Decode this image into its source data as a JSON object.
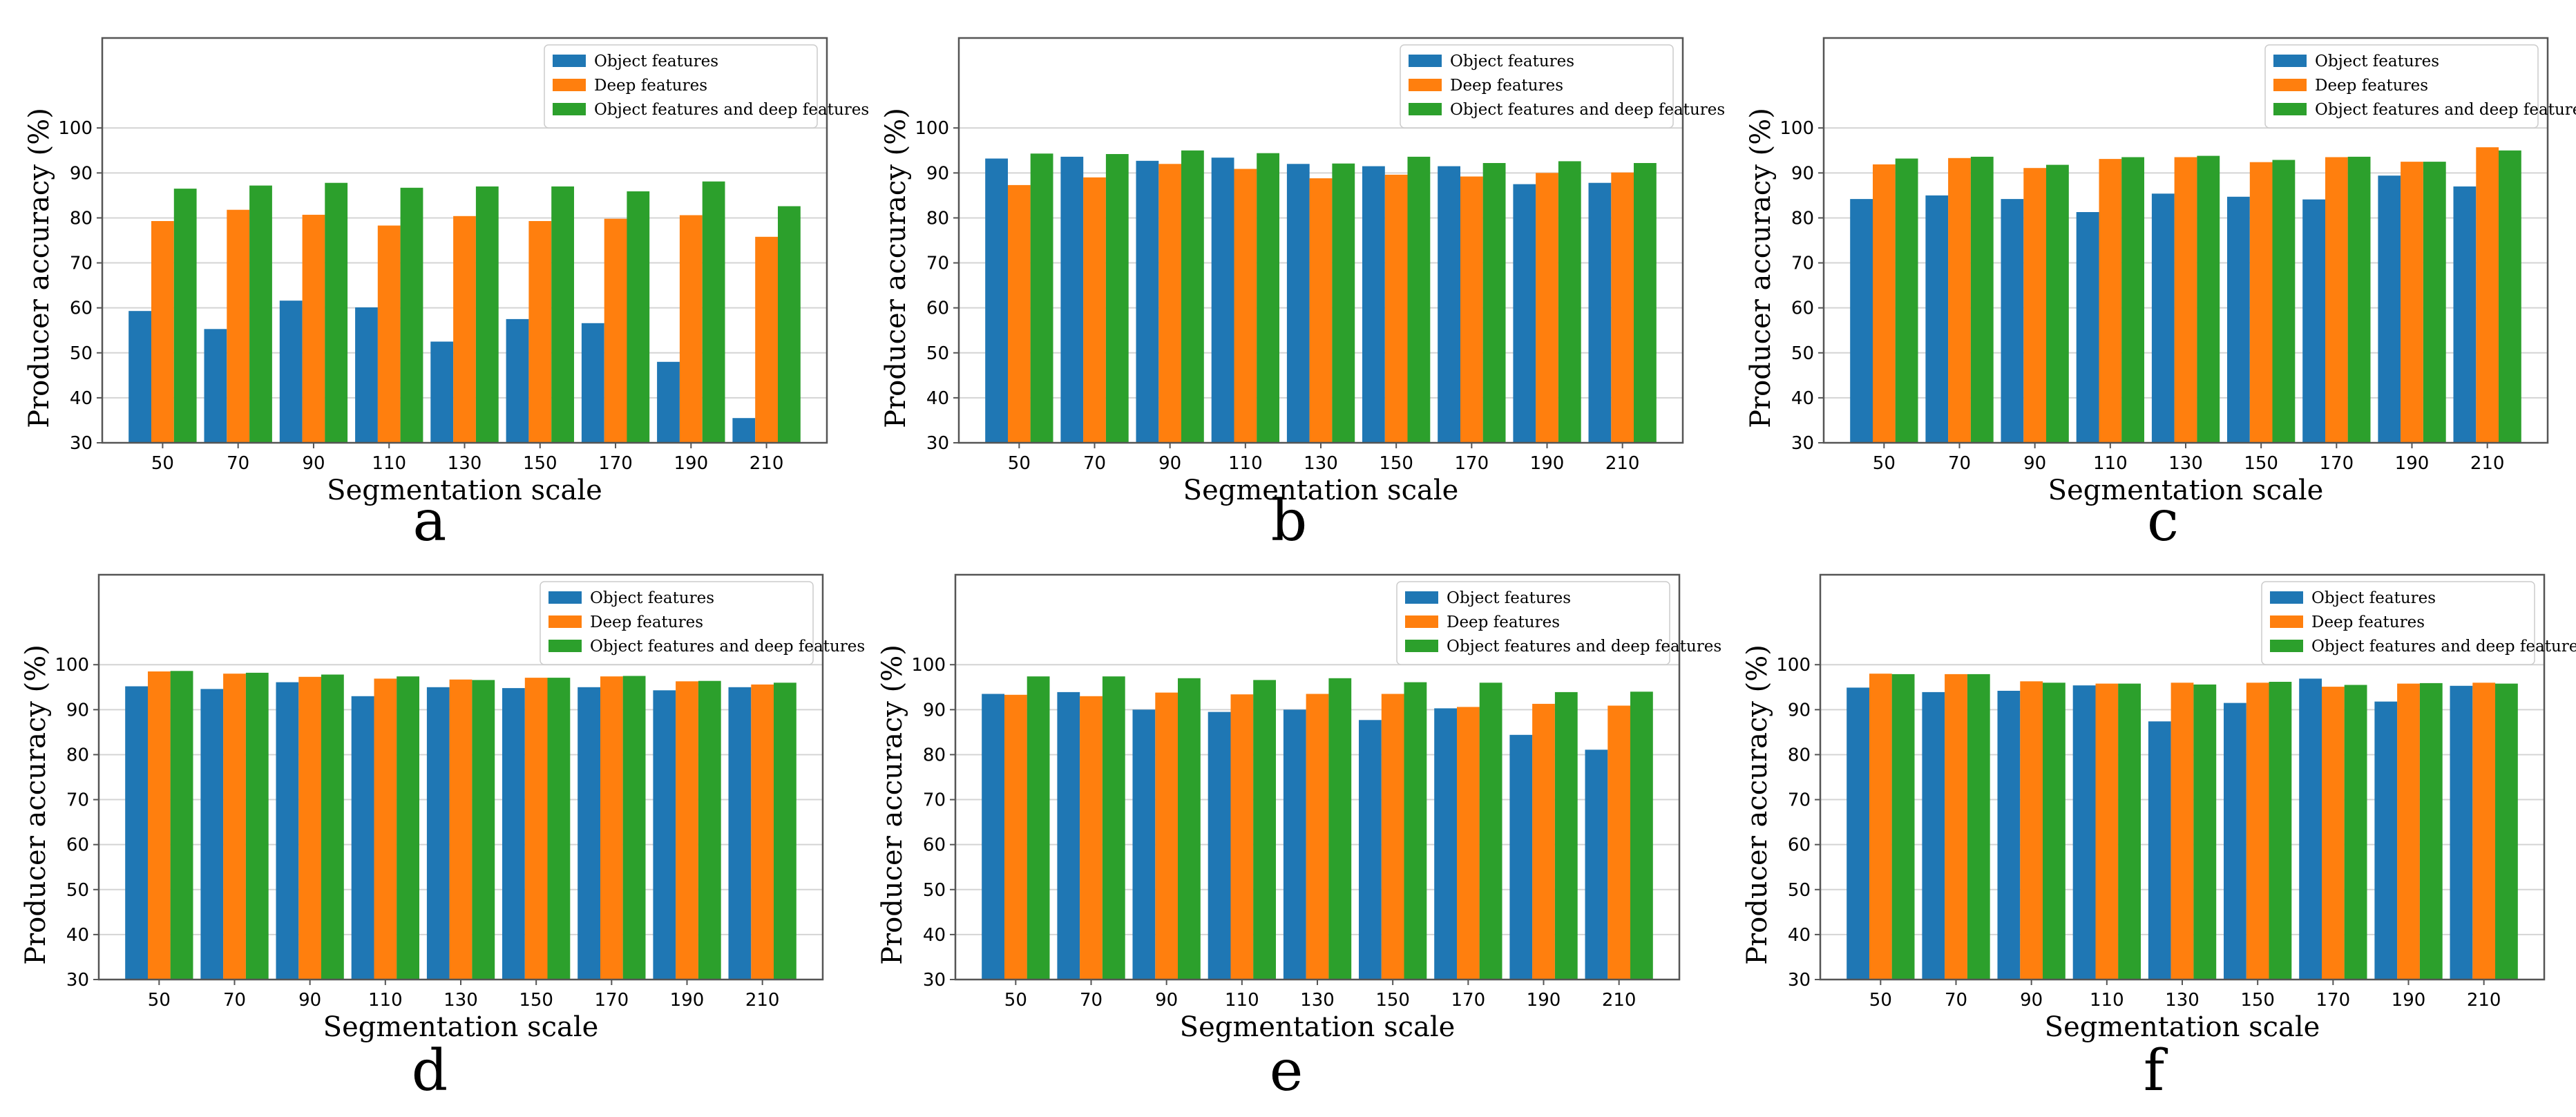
{
  "figure": {
    "colors": {
      "object": "#1f77b4",
      "deep": "#ff7f0e",
      "combined": "#2ca02c",
      "grid": "#d4d4d4",
      "axis": "#555555"
    }
  },
  "chart_data": [
    {
      "panel": "a",
      "type": "bar",
      "xlabel": "Segmentation scale",
      "ylabel": "Producer accuracy (%)",
      "ylim": [
        30,
        120
      ],
      "yticks": [
        30,
        40,
        50,
        60,
        70,
        80,
        90,
        100
      ],
      "grid": true,
      "legend_position": "top-right",
      "categories": [
        "50",
        "70",
        "90",
        "110",
        "130",
        "150",
        "170",
        "190",
        "210"
      ],
      "series": [
        {
          "name": "Object features",
          "color": "#1f77b4",
          "values": [
            59.3,
            55.3,
            61.6,
            60.1,
            52.5,
            57.5,
            56.6,
            48.0,
            35.5
          ]
        },
        {
          "name": "Deep features",
          "color": "#ff7f0e",
          "values": [
            79.3,
            81.8,
            80.7,
            78.3,
            80.4,
            79.3,
            79.8,
            80.6,
            75.8
          ]
        },
        {
          "name": "Object features and deep features",
          "color": "#2ca02c",
          "values": [
            86.5,
            87.2,
            87.8,
            86.7,
            87.0,
            87.0,
            85.9,
            88.1,
            82.6
          ]
        }
      ]
    },
    {
      "panel": "b",
      "type": "bar",
      "xlabel": "Segmentation scale",
      "ylabel": "Producer accuracy (%)",
      "ylim": [
        30,
        120
      ],
      "yticks": [
        30,
        40,
        50,
        60,
        70,
        80,
        90,
        100
      ],
      "grid": true,
      "legend_position": "top-right",
      "categories": [
        "50",
        "70",
        "90",
        "110",
        "130",
        "150",
        "170",
        "190",
        "210"
      ],
      "series": [
        {
          "name": "Object features",
          "color": "#1f77b4",
          "values": [
            93.2,
            93.6,
            92.7,
            93.4,
            92.0,
            91.5,
            91.5,
            87.5,
            87.8
          ]
        },
        {
          "name": "Deep features",
          "color": "#ff7f0e",
          "values": [
            87.3,
            89.0,
            92.0,
            90.9,
            88.8,
            89.6,
            89.2,
            90.0,
            90.1
          ]
        },
        {
          "name": "Object features and deep features",
          "color": "#2ca02c",
          "values": [
            94.3,
            94.2,
            95.0,
            94.4,
            92.1,
            93.6,
            92.2,
            92.6,
            92.2
          ]
        }
      ]
    },
    {
      "panel": "c",
      "type": "bar",
      "xlabel": "Segmentation scale",
      "ylabel": "Producer accuracy (%)",
      "ylim": [
        30,
        120
      ],
      "yticks": [
        30,
        40,
        50,
        60,
        70,
        80,
        90,
        100
      ],
      "grid": true,
      "legend_position": "top-right",
      "categories": [
        "50",
        "70",
        "90",
        "110",
        "130",
        "150",
        "170",
        "190",
        "210"
      ],
      "series": [
        {
          "name": "Object features",
          "color": "#1f77b4",
          "values": [
            84.2,
            85.0,
            84.2,
            81.3,
            85.4,
            84.7,
            84.1,
            89.4,
            87.0
          ]
        },
        {
          "name": "Deep features",
          "color": "#ff7f0e",
          "values": [
            91.9,
            93.3,
            91.1,
            93.1,
            93.5,
            92.4,
            93.5,
            92.5,
            95.7
          ]
        },
        {
          "name": "Object features and deep features",
          "color": "#2ca02c",
          "values": [
            93.2,
            93.6,
            91.8,
            93.5,
            93.8,
            92.9,
            93.6,
            92.5,
            95.0
          ]
        }
      ]
    },
    {
      "panel": "d",
      "type": "bar",
      "xlabel": "Segmentation scale",
      "ylabel": "Producer accuracy (%)",
      "ylim": [
        30,
        120
      ],
      "yticks": [
        30,
        40,
        50,
        60,
        70,
        80,
        90,
        100
      ],
      "grid": true,
      "legend_position": "top-right",
      "categories": [
        "50",
        "70",
        "90",
        "110",
        "130",
        "150",
        "170",
        "190",
        "210"
      ],
      "series": [
        {
          "name": "Object features",
          "color": "#1f77b4",
          "values": [
            95.2,
            94.6,
            96.1,
            93.0,
            95.0,
            94.8,
            95.0,
            94.3,
            95.0
          ]
        },
        {
          "name": "Deep features",
          "color": "#ff7f0e",
          "values": [
            98.5,
            98.0,
            97.3,
            96.9,
            96.7,
            97.1,
            97.4,
            96.3,
            95.6
          ]
        },
        {
          "name": "Object features and deep features",
          "color": "#2ca02c",
          "values": [
            98.6,
            98.2,
            97.8,
            97.4,
            96.6,
            97.1,
            97.5,
            96.4,
            96.0
          ]
        }
      ]
    },
    {
      "panel": "e",
      "type": "bar",
      "xlabel": "Segmentation scale",
      "ylabel": "Producer accuracy (%)",
      "ylim": [
        30,
        120
      ],
      "yticks": [
        30,
        40,
        50,
        60,
        70,
        80,
        90,
        100
      ],
      "grid": true,
      "legend_position": "top-right",
      "categories": [
        "50",
        "70",
        "90",
        "110",
        "130",
        "150",
        "170",
        "190",
        "210"
      ],
      "series": [
        {
          "name": "Object features",
          "color": "#1f77b4",
          "values": [
            93.5,
            93.9,
            90.0,
            89.5,
            90.0,
            87.7,
            90.3,
            84.4,
            81.1
          ]
        },
        {
          "name": "Deep features",
          "color": "#ff7f0e",
          "values": [
            93.3,
            93.0,
            93.8,
            93.4,
            93.5,
            93.5,
            90.6,
            91.3,
            90.9
          ]
        },
        {
          "name": "Object features and deep features",
          "color": "#2ca02c",
          "values": [
            97.4,
            97.4,
            97.0,
            96.6,
            97.0,
            96.1,
            96.0,
            93.9,
            94.0
          ]
        }
      ]
    },
    {
      "panel": "f",
      "type": "bar",
      "xlabel": "Segmentation scale",
      "ylabel": "Producer accuracy (%)",
      "ylim": [
        30,
        120
      ],
      "yticks": [
        30,
        40,
        50,
        60,
        70,
        80,
        90,
        100
      ],
      "grid": true,
      "legend_position": "top-right",
      "categories": [
        "50",
        "70",
        "90",
        "110",
        "130",
        "150",
        "170",
        "190",
        "210"
      ],
      "series": [
        {
          "name": "Object features",
          "color": "#1f77b4",
          "values": [
            94.9,
            93.9,
            94.2,
            95.4,
            87.4,
            91.5,
            96.9,
            91.8,
            95.3
          ]
        },
        {
          "name": "Deep features",
          "color": "#ff7f0e",
          "values": [
            98.0,
            97.9,
            96.3,
            95.8,
            96.0,
            96.0,
            95.1,
            95.8,
            96.0
          ]
        },
        {
          "name": "Object features and deep features",
          "color": "#2ca02c",
          "values": [
            97.9,
            97.9,
            96.0,
            95.8,
            95.6,
            96.2,
            95.5,
            95.9,
            95.8
          ]
        }
      ]
    }
  ]
}
